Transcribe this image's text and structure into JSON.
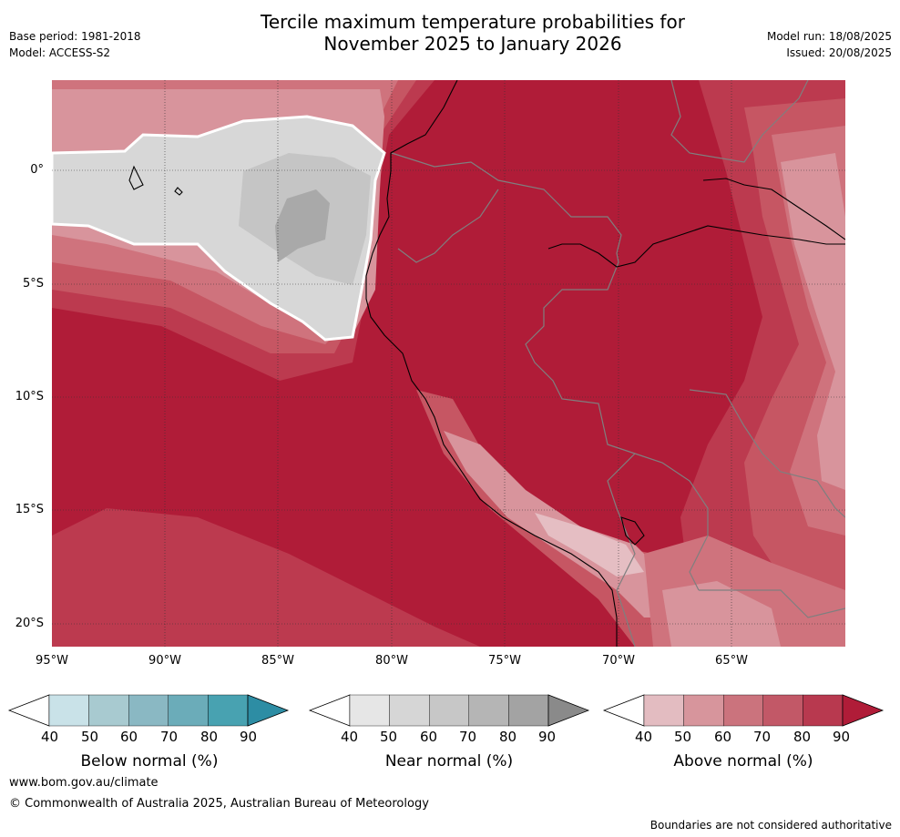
{
  "title_line1": "Tercile maximum temperature probabilities for",
  "title_line2": "November 2025 to January 2026",
  "meta": {
    "base_period": "Base period: 1981-2018",
    "model": "Model: ACCESS-S2",
    "model_run": "Model run: 18/08/2025",
    "issued": "Issued: 20/08/2025"
  },
  "map": {
    "lon_ticks": [
      "95°W",
      "90°W",
      "85°W",
      "80°W",
      "75°W",
      "70°W",
      "65°W"
    ],
    "lat_ticks": [
      "0°",
      "5°S",
      "10°S",
      "15°S",
      "20°S"
    ],
    "colors": {
      "above_90": "#b01c38",
      "above_80": "#bc3a4f",
      "above_70": "#c65663",
      "above_60": "#cf737d",
      "above_50": "#d8949c",
      "above_40": "#e5bec3",
      "near_50": "#d7d7d7",
      "near_60": "#c5c5c5",
      "near_70": "#a9a9a9",
      "boundary": "#7f7f7f",
      "coast": "#000000",
      "grid": "#333333"
    }
  },
  "colorbars": [
    {
      "label": "Below normal (%)",
      "ticks": [
        "40",
        "50",
        "60",
        "70",
        "80",
        "90"
      ],
      "colors": [
        "#ffffff",
        "#c9e2e8",
        "#a8cad0",
        "#8ab8c3",
        "#6bacb9",
        "#48a2b1",
        "#2d8da4"
      ]
    },
    {
      "label": "Near normal (%)",
      "ticks": [
        "40",
        "50",
        "60",
        "70",
        "80",
        "90"
      ],
      "colors": [
        "#ffffff",
        "#e6e6e6",
        "#d6d6d6",
        "#c7c7c7",
        "#b5b5b5",
        "#a3a3a3",
        "#8a8a8a"
      ]
    },
    {
      "label": "Above normal (%)",
      "ticks": [
        "40",
        "50",
        "60",
        "70",
        "80",
        "90"
      ],
      "colors": [
        "#ffffff",
        "#e3bcc1",
        "#d7959c",
        "#cb737d",
        "#c25867",
        "#b8394f",
        "#b01c38"
      ]
    }
  ],
  "footer": {
    "url": "www.bom.gov.au/climate",
    "copyright": "© Commonwealth of Australia 2025, Australian Bureau of Meteorology",
    "note": "Boundaries are not considered authoritative"
  }
}
